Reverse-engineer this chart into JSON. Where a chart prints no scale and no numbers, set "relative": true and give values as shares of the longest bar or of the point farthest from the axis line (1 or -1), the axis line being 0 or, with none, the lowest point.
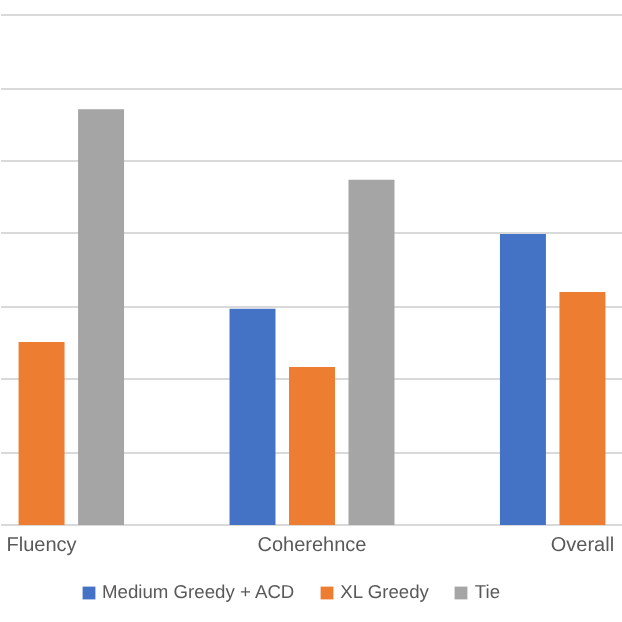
{
  "chart_data": {
    "type": "bar",
    "relative": true,
    "categories": [
      "Fluency",
      "Coherehnce",
      "Overall"
    ],
    "series": [
      {
        "name": "Medium Greedy + ACD",
        "color": "#4472c4",
        "values": [
          null,
          0.52,
          0.7
        ]
      },
      {
        "name": "XL Greedy",
        "color": "#ed7d31",
        "values": [
          0.44,
          0.38,
          0.56
        ]
      },
      {
        "name": "Tie",
        "color": "#a5a5a5",
        "values": [
          1,
          0.83,
          null
        ]
      }
    ],
    "grid": "y",
    "legend": "bottom"
  }
}
